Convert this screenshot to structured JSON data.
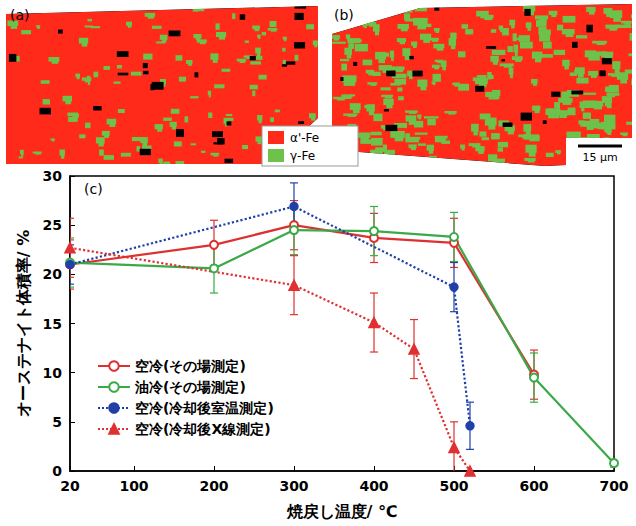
{
  "chart_data": {
    "type": "line",
    "panel_label": "(c)",
    "x_label": "焼戻し温度/ ℃",
    "y_label": "オーステナイト体積率/ %",
    "xlim": [
      20,
      700
    ],
    "xticks": [
      20,
      100,
      200,
      300,
      400,
      500,
      600,
      700
    ],
    "ylim": [
      0,
      30
    ],
    "yticks": [
      0,
      5,
      10,
      15,
      20,
      25,
      30
    ],
    "grid": false,
    "legend": "lower left",
    "series": [
      {
        "name": "空冷(その場測定)",
        "color": "#dd3030",
        "marker": "open_circle",
        "line_style": "solid",
        "x": [
          20,
          200,
          300,
          400,
          500,
          600
        ],
        "values": [
          21,
          23,
          25,
          23.7,
          23.2,
          9.8
        ],
        "errors": [
          2.5,
          2.5,
          2.5,
          2.5,
          2.5,
          2.5
        ]
      },
      {
        "name": "油冷(その場測定)",
        "color": "#3aaa48",
        "marker": "open_circle",
        "line_style": "solid",
        "x": [
          20,
          200,
          300,
          400,
          500,
          600,
          700
        ],
        "values": [
          21.2,
          20.6,
          24.5,
          24.4,
          23.8,
          9.5,
          0.8
        ],
        "errors": [
          2.5,
          2.5,
          2.5,
          2.5,
          2.5,
          2.5,
          0.4
        ]
      },
      {
        "name": "空冷(冷却後室温測定)",
        "color": "#2040a8",
        "marker": "circle",
        "line_style": "dotted",
        "x": [
          20,
          300,
          500,
          520
        ],
        "values": [
          21,
          26.9,
          18.7,
          4.6
        ],
        "errors": [
          2,
          2.4,
          2.5,
          2.4
        ]
      },
      {
        "name": "空冷(冷却後X線測定)",
        "color": "#e03030",
        "marker": "triangle",
        "line_style": "dotted",
        "x": [
          20,
          300,
          400,
          450,
          500,
          520
        ],
        "values": [
          22.7,
          18.9,
          15.1,
          12.4,
          2.4,
          0
        ],
        "errors": [
          3,
          3,
          3,
          3,
          2.6,
          0
        ]
      }
    ]
  },
  "micrographs": {
    "panels": [
      "(a)",
      "(b)"
    ],
    "phases": [
      {
        "name": "α'-Fe",
        "color": "#ff2a1a"
      },
      {
        "name": "γ-Fe",
        "color": "#6cc24a"
      }
    ],
    "scale_bar": "15 μm"
  }
}
